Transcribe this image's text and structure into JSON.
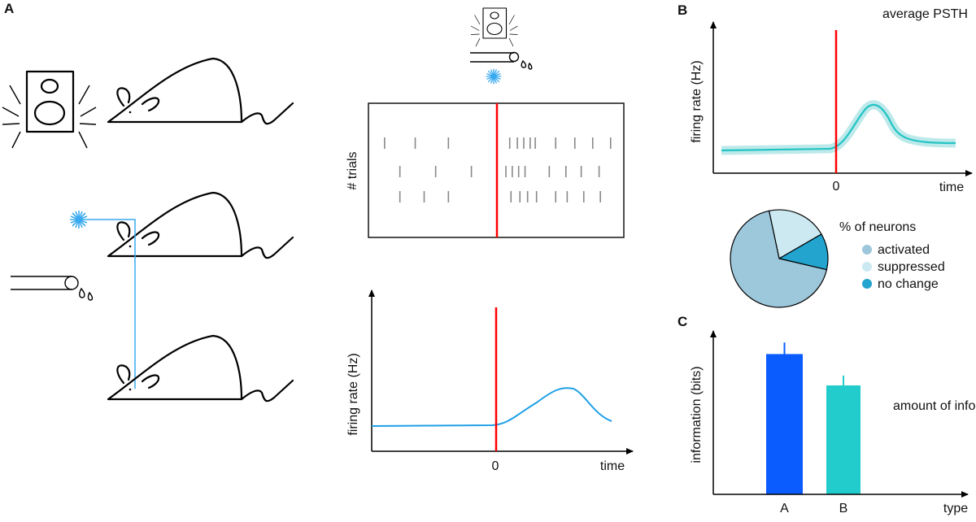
{
  "panels": {
    "a": "A",
    "b": "B",
    "c": "C"
  },
  "stimuli": {
    "sound": "speaker-icon",
    "water": "water-tube-icon",
    "light": "laser-star-icon"
  },
  "colors": {
    "stimulus_line": "#ff0000",
    "trace_a": "#1ea0e6",
    "trace_b": "#22c4c4",
    "laser": "#3aaaf0",
    "bar_a": "#0a5cff",
    "bar_b": "#22cccc"
  },
  "raster": {
    "ylabel": "# trials",
    "spike_times": [
      [
        -0.88,
        -0.64,
        -0.38,
        0.1,
        0.16,
        0.21,
        0.26,
        0.3,
        0.46,
        0.61,
        0.75,
        0.89
      ],
      [
        -0.76,
        -0.48,
        -0.2,
        0.07,
        0.12,
        0.17,
        0.22,
        0.41,
        0.54,
        0.66,
        0.8
      ],
      [
        -0.76,
        -0.57,
        -0.38,
        0.11,
        0.18,
        0.24,
        0.31,
        0.46,
        0.55,
        0.68,
        0.81
      ]
    ]
  },
  "rate_plot": {
    "ylabel": "firing rate (Hz)",
    "xlabel": "time",
    "zero_tick": "0"
  },
  "psth": {
    "title": "average PSTH",
    "ylabel": "firing rate (Hz)",
    "xlabel": "time",
    "zero_tick": "0"
  },
  "chart_data": [
    {
      "type": "pie",
      "title": "% of neurons",
      "categories": [
        "activated",
        "suppressed",
        "no change"
      ],
      "values": [
        68,
        20,
        12
      ],
      "colors": [
        "#9dc7db",
        "#cce9f2",
        "#22a4cf"
      ],
      "legend": "right"
    },
    {
      "type": "bar",
      "title": "amount of info",
      "categories": [
        "A",
        "B"
      ],
      "values": [
        0.85,
        0.66
      ],
      "errors": [
        0.07,
        0.06
      ],
      "xlabel": "type",
      "ylabel": "information (bits)",
      "ylim": [
        0,
        1
      ]
    }
  ]
}
